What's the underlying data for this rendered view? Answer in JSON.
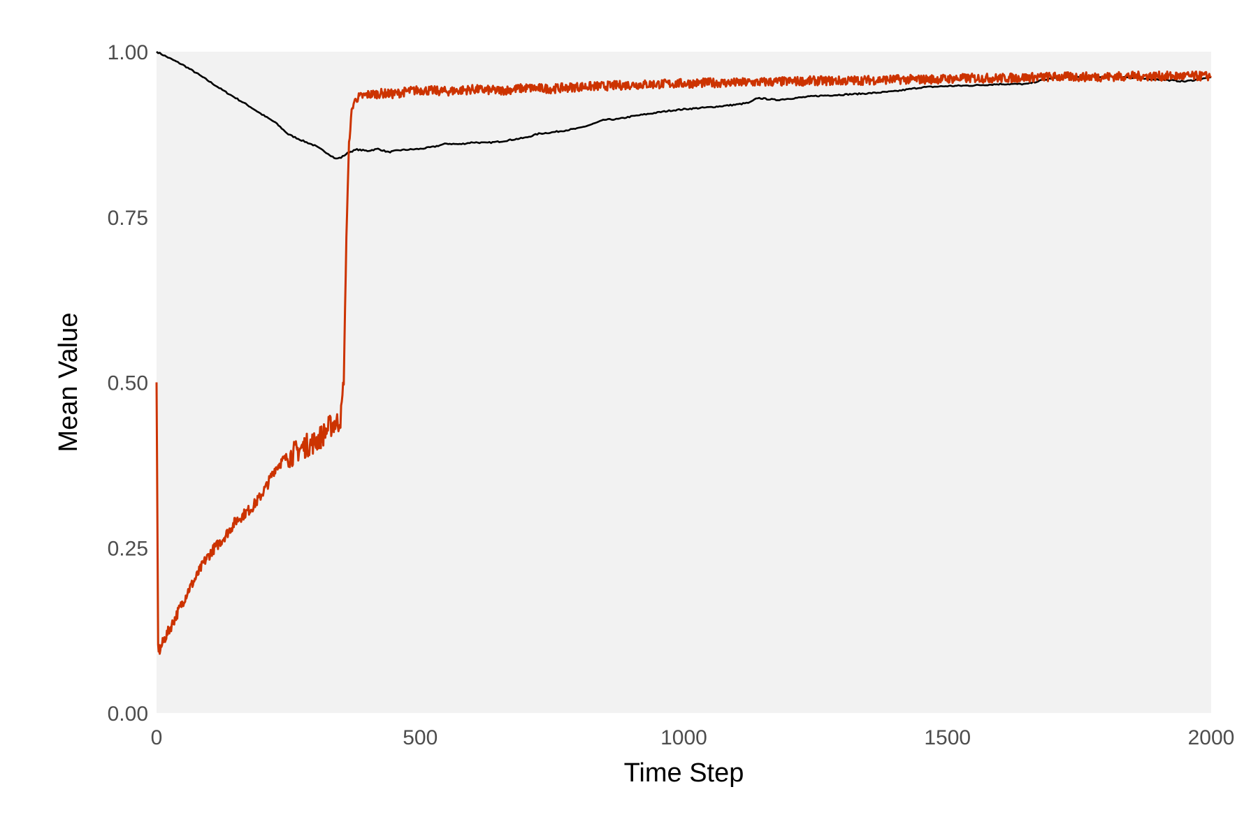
{
  "chart_data": {
    "type": "line",
    "title": "",
    "xlabel": "Time Step",
    "ylabel": "Mean Value",
    "xlim": [
      0,
      2000
    ],
    "ylim": [
      0,
      1
    ],
    "grid": false,
    "panel_background": "#f2f2f2",
    "x_ticks": [
      {
        "value": 0,
        "label": "0"
      },
      {
        "value": 500,
        "label": "500"
      },
      {
        "value": 1000,
        "label": "1000"
      },
      {
        "value": 1500,
        "label": "1500"
      },
      {
        "value": 2000,
        "label": "2000"
      }
    ],
    "y_ticks": [
      {
        "value": 0,
        "label": "0.00"
      },
      {
        "value": 0.25,
        "label": "0.25"
      },
      {
        "value": 0.5,
        "label": "0.50"
      },
      {
        "value": 0.75,
        "label": "0.75"
      },
      {
        "value": 1,
        "label": "1.00"
      }
    ],
    "series": [
      {
        "color": "#000000",
        "points": [
          [
            0,
            1.0
          ],
          [
            25,
            0.99
          ],
          [
            50,
            0.98
          ],
          [
            75,
            0.968
          ],
          [
            100,
            0.955
          ],
          [
            125,
            0.942
          ],
          [
            150,
            0.93
          ],
          [
            175,
            0.918
          ],
          [
            200,
            0.905
          ],
          [
            225,
            0.893
          ],
          [
            250,
            0.875
          ],
          [
            275,
            0.866
          ],
          [
            300,
            0.858
          ],
          [
            325,
            0.846
          ],
          [
            340,
            0.838
          ],
          [
            350,
            0.84
          ],
          [
            365,
            0.848
          ],
          [
            380,
            0.852
          ],
          [
            400,
            0.85
          ],
          [
            420,
            0.853
          ],
          [
            440,
            0.848
          ],
          [
            460,
            0.851
          ],
          [
            500,
            0.853
          ],
          [
            525,
            0.856
          ],
          [
            550,
            0.861
          ],
          [
            575,
            0.86
          ],
          [
            600,
            0.863
          ],
          [
            625,
            0.862
          ],
          [
            650,
            0.864
          ],
          [
            700,
            0.87
          ],
          [
            725,
            0.876
          ],
          [
            750,
            0.878
          ],
          [
            800,
            0.884
          ],
          [
            825,
            0.89
          ],
          [
            850,
            0.897
          ],
          [
            875,
            0.898
          ],
          [
            900,
            0.902
          ],
          [
            925,
            0.905
          ],
          [
            950,
            0.908
          ],
          [
            975,
            0.911
          ],
          [
            1000,
            0.913
          ],
          [
            1050,
            0.916
          ],
          [
            1100,
            0.92
          ],
          [
            1125,
            0.923
          ],
          [
            1140,
            0.93
          ],
          [
            1175,
            0.927
          ],
          [
            1200,
            0.929
          ],
          [
            1250,
            0.933
          ],
          [
            1300,
            0.935
          ],
          [
            1350,
            0.937
          ],
          [
            1400,
            0.94
          ],
          [
            1425,
            0.943
          ],
          [
            1450,
            0.946
          ],
          [
            1475,
            0.947
          ],
          [
            1500,
            0.948
          ],
          [
            1550,
            0.949
          ],
          [
            1600,
            0.951
          ],
          [
            1650,
            0.951
          ],
          [
            1675,
            0.956
          ],
          [
            1700,
            0.96
          ],
          [
            1750,
            0.962
          ],
          [
            1800,
            0.962
          ],
          [
            1825,
            0.963
          ],
          [
            1850,
            0.96
          ],
          [
            1900,
            0.958
          ],
          [
            1950,
            0.955
          ],
          [
            2000,
            0.961
          ]
        ]
      },
      {
        "color": "#cc3300",
        "points": [
          [
            0,
            0.5
          ],
          [
            3,
            0.1
          ],
          [
            6,
            0.095
          ],
          [
            15,
            0.112
          ],
          [
            30,
            0.135
          ],
          [
            45,
            0.16
          ],
          [
            60,
            0.185
          ],
          [
            75,
            0.205
          ],
          [
            90,
            0.228
          ],
          [
            105,
            0.245
          ],
          [
            120,
            0.258
          ],
          [
            135,
            0.273
          ],
          [
            150,
            0.29
          ],
          [
            165,
            0.3
          ],
          [
            180,
            0.31
          ],
          [
            195,
            0.325
          ],
          [
            210,
            0.345
          ],
          [
            225,
            0.37
          ],
          [
            240,
            0.382
          ],
          [
            255,
            0.39
          ],
          [
            270,
            0.398
          ],
          [
            285,
            0.405
          ],
          [
            300,
            0.41
          ],
          [
            315,
            0.42
          ],
          [
            325,
            0.43
          ],
          [
            335,
            0.438
          ],
          [
            345,
            0.44
          ],
          [
            350,
            0.45
          ],
          [
            355,
            0.5
          ],
          [
            360,
            0.72
          ],
          [
            365,
            0.86
          ],
          [
            370,
            0.91
          ],
          [
            375,
            0.925
          ],
          [
            380,
            0.93
          ],
          [
            400,
            0.935
          ],
          [
            425,
            0.937
          ],
          [
            450,
            0.936
          ],
          [
            475,
            0.94
          ],
          [
            500,
            0.942
          ],
          [
            550,
            0.94
          ],
          [
            600,
            0.943
          ],
          [
            650,
            0.941
          ],
          [
            700,
            0.945
          ],
          [
            750,
            0.944
          ],
          [
            800,
            0.947
          ],
          [
            850,
            0.948
          ],
          [
            900,
            0.95
          ],
          [
            950,
            0.951
          ],
          [
            1000,
            0.952
          ],
          [
            1050,
            0.953
          ],
          [
            1100,
            0.953
          ],
          [
            1150,
            0.954
          ],
          [
            1200,
            0.955
          ],
          [
            1250,
            0.956
          ],
          [
            1300,
            0.956
          ],
          [
            1350,
            0.957
          ],
          [
            1400,
            0.958
          ],
          [
            1450,
            0.958
          ],
          [
            1500,
            0.959
          ],
          [
            1550,
            0.96
          ],
          [
            1600,
            0.96
          ],
          [
            1650,
            0.961
          ],
          [
            1700,
            0.962
          ],
          [
            1750,
            0.962
          ],
          [
            1800,
            0.962
          ],
          [
            1850,
            0.963
          ],
          [
            1900,
            0.963
          ],
          [
            1950,
            0.963
          ],
          [
            2000,
            0.963
          ]
        ]
      }
    ]
  }
}
